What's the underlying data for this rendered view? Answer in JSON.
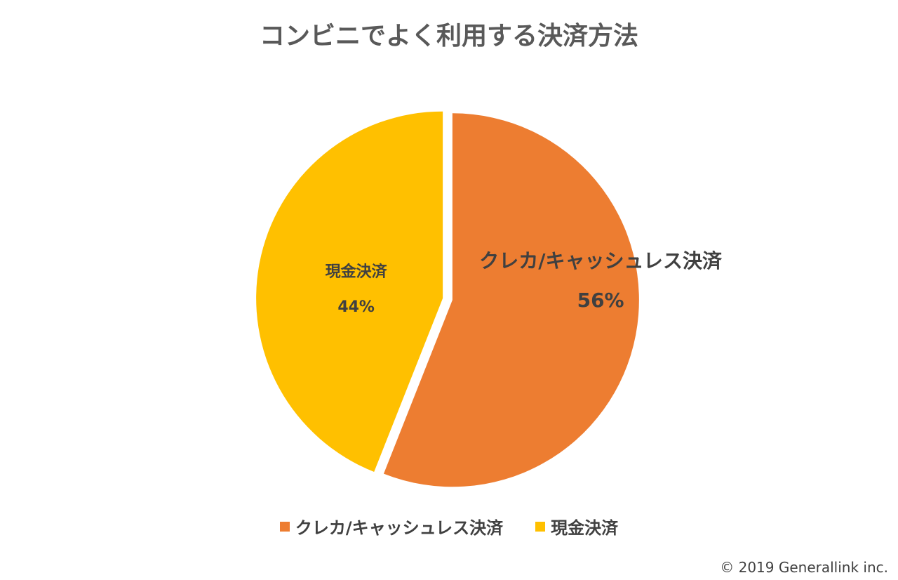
{
  "title": "コンビニでよく利用する決済方法",
  "copyright": "© 2019 Generallink inc.",
  "chart_data": {
    "type": "pie",
    "title": "コンビニでよく利用する決済方法",
    "slices": [
      {
        "label": "クレカ/キャッシュレス決済",
        "value": 56,
        "display": "56%",
        "color": "#ED7D31"
      },
      {
        "label": "現金決済",
        "value": 44,
        "display": "44%",
        "color": "#FFC000"
      }
    ],
    "legend_position": "bottom",
    "exploded": true
  }
}
